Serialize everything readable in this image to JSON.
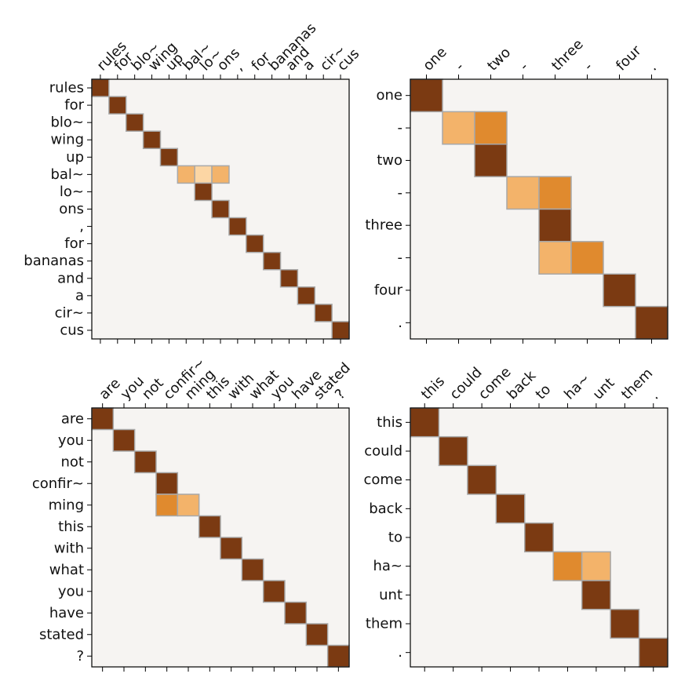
{
  "colors": {
    "background": "#f6f4f2",
    "cell_border": "#a8a8a8",
    "levels": {
      "1": "#7b3a12",
      "2": "#e08a2e",
      "3": "#f3b36a",
      "4": "#fcd6a4"
    },
    "axes": "#000000"
  },
  "chart_data": [
    {
      "type": "heatmap",
      "position": "top-left",
      "x": [
        "rules",
        "for",
        "blo~",
        "wing",
        "up",
        "bal~",
        "lo~",
        "ons",
        ",",
        "for",
        "bananas",
        "and",
        "a",
        "cir~",
        "cus"
      ],
      "y": [
        "rules",
        "for",
        "blo~",
        "wing",
        "up",
        "bal~",
        "lo~",
        "ons",
        ",",
        "for",
        "bananas",
        "and",
        "a",
        "cir~",
        "cus"
      ],
      "cells": [
        [
          0,
          0,
          1
        ],
        [
          1,
          1,
          1
        ],
        [
          2,
          2,
          1
        ],
        [
          3,
          3,
          1
        ],
        [
          4,
          4,
          1
        ],
        [
          5,
          5,
          3
        ],
        [
          5,
          6,
          4
        ],
        [
          5,
          7,
          3
        ],
        [
          6,
          6,
          1
        ],
        [
          7,
          7,
          1
        ],
        [
          8,
          8,
          1
        ],
        [
          9,
          9,
          1
        ],
        [
          10,
          10,
          1
        ],
        [
          11,
          11,
          1
        ],
        [
          12,
          12,
          1
        ],
        [
          13,
          13,
          1
        ],
        [
          14,
          14,
          1
        ]
      ]
    },
    {
      "type": "heatmap",
      "position": "top-right",
      "x": [
        "one",
        "-",
        "two",
        "-",
        "three",
        "-",
        "four",
        "."
      ],
      "y": [
        "one",
        "-",
        "two",
        "-",
        "three",
        "-",
        "four",
        "."
      ],
      "cells": [
        [
          0,
          0,
          1
        ],
        [
          1,
          1,
          3
        ],
        [
          1,
          2,
          2
        ],
        [
          2,
          2,
          1
        ],
        [
          3,
          3,
          3
        ],
        [
          3,
          4,
          2
        ],
        [
          4,
          4,
          1
        ],
        [
          5,
          4,
          3
        ],
        [
          5,
          5,
          2
        ],
        [
          6,
          6,
          1
        ],
        [
          7,
          7,
          1
        ]
      ]
    },
    {
      "type": "heatmap",
      "position": "bottom-left",
      "x": [
        "are",
        "you",
        "not",
        "confir~",
        "ming",
        "this",
        "with",
        "what",
        "you",
        "have",
        "stated",
        "?"
      ],
      "y": [
        "are",
        "you",
        "not",
        "confir~",
        "ming",
        "this",
        "with",
        "what",
        "you",
        "have",
        "stated",
        "?"
      ],
      "cells": [
        [
          0,
          0,
          1
        ],
        [
          1,
          1,
          1
        ],
        [
          2,
          2,
          1
        ],
        [
          3,
          3,
          1
        ],
        [
          4,
          3,
          2
        ],
        [
          4,
          4,
          3
        ],
        [
          5,
          5,
          1
        ],
        [
          6,
          6,
          1
        ],
        [
          7,
          7,
          1
        ],
        [
          8,
          8,
          1
        ],
        [
          9,
          9,
          1
        ],
        [
          10,
          10,
          1
        ],
        [
          11,
          11,
          1
        ]
      ]
    },
    {
      "type": "heatmap",
      "position": "bottom-right",
      "x": [
        "this",
        "could",
        "come",
        "back",
        "to",
        "ha~",
        "unt",
        "them",
        "."
      ],
      "y": [
        "this",
        "could",
        "come",
        "back",
        "to",
        "ha~",
        "unt",
        "them",
        "."
      ],
      "cells": [
        [
          0,
          0,
          1
        ],
        [
          1,
          1,
          1
        ],
        [
          2,
          2,
          1
        ],
        [
          3,
          3,
          1
        ],
        [
          4,
          4,
          1
        ],
        [
          5,
          5,
          2
        ],
        [
          5,
          6,
          3
        ],
        [
          6,
          6,
          1
        ],
        [
          7,
          7,
          1
        ],
        [
          8,
          8,
          1
        ]
      ]
    }
  ]
}
